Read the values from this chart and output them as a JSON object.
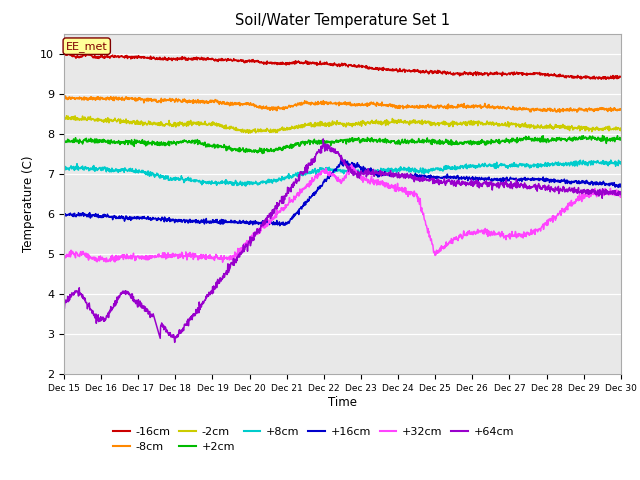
{
  "title": "Soil/Water Temperature Set 1",
  "xlabel": "Time",
  "ylabel": "Temperature (C)",
  "ylim": [
    2.0,
    10.5
  ],
  "yticks": [
    2.0,
    3.0,
    4.0,
    5.0,
    6.0,
    7.0,
    8.0,
    9.0,
    10.0
  ],
  "plot_bg_color": "#e8e8e8",
  "fig_bg_color": "#ffffff",
  "annotation_text": "EE_met",
  "annotation_bg": "#ffff99",
  "annotation_border": "#800000",
  "colors": {
    "-16cm": "#cc0000",
    "-8cm": "#ff8800",
    "-2cm": "#cccc00",
    "+2cm": "#00bb00",
    "+8cm": "#00cccc",
    "+16cm": "#0000cc",
    "+32cm": "#ff44ff",
    "+64cm": "#9900cc"
  },
  "n_points": 1500,
  "x_start_day": 15,
  "x_end_day": 30,
  "xtick_days": [
    15,
    16,
    17,
    18,
    19,
    20,
    21,
    22,
    23,
    24,
    25,
    26,
    27,
    28,
    29,
    30
  ],
  "figsize": [
    6.4,
    4.8
  ],
  "dpi": 100
}
